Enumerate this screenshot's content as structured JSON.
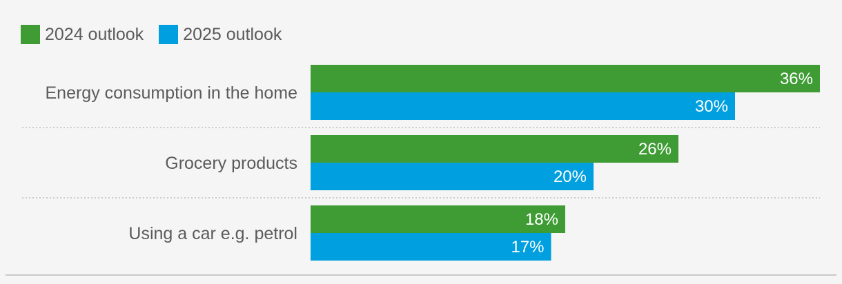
{
  "legend": {
    "items": [
      {
        "label": "2024 outlook",
        "color": "#3f9c35"
      },
      {
        "label": "2025 outlook",
        "color": "#009fdf"
      }
    ]
  },
  "chart_data": {
    "type": "bar",
    "orientation": "horizontal",
    "categories": [
      "Energy consumption in the home",
      "Grocery products",
      "Using a car e.g. petrol"
    ],
    "series": [
      {
        "name": "2024 outlook",
        "values": [
          36,
          26,
          18
        ],
        "labels": [
          "36%",
          "26%",
          "18%"
        ],
        "color": "#3f9c35"
      },
      {
        "name": "2025 outlook",
        "values": [
          30,
          20,
          17
        ],
        "labels": [
          "30%",
          "20%",
          "17%"
        ],
        "color": "#009fdf"
      }
    ],
    "xlim": [
      0,
      36
    ],
    "unit": "%",
    "grid": false,
    "legend_position": "top-left",
    "dividers": "dotted"
  }
}
